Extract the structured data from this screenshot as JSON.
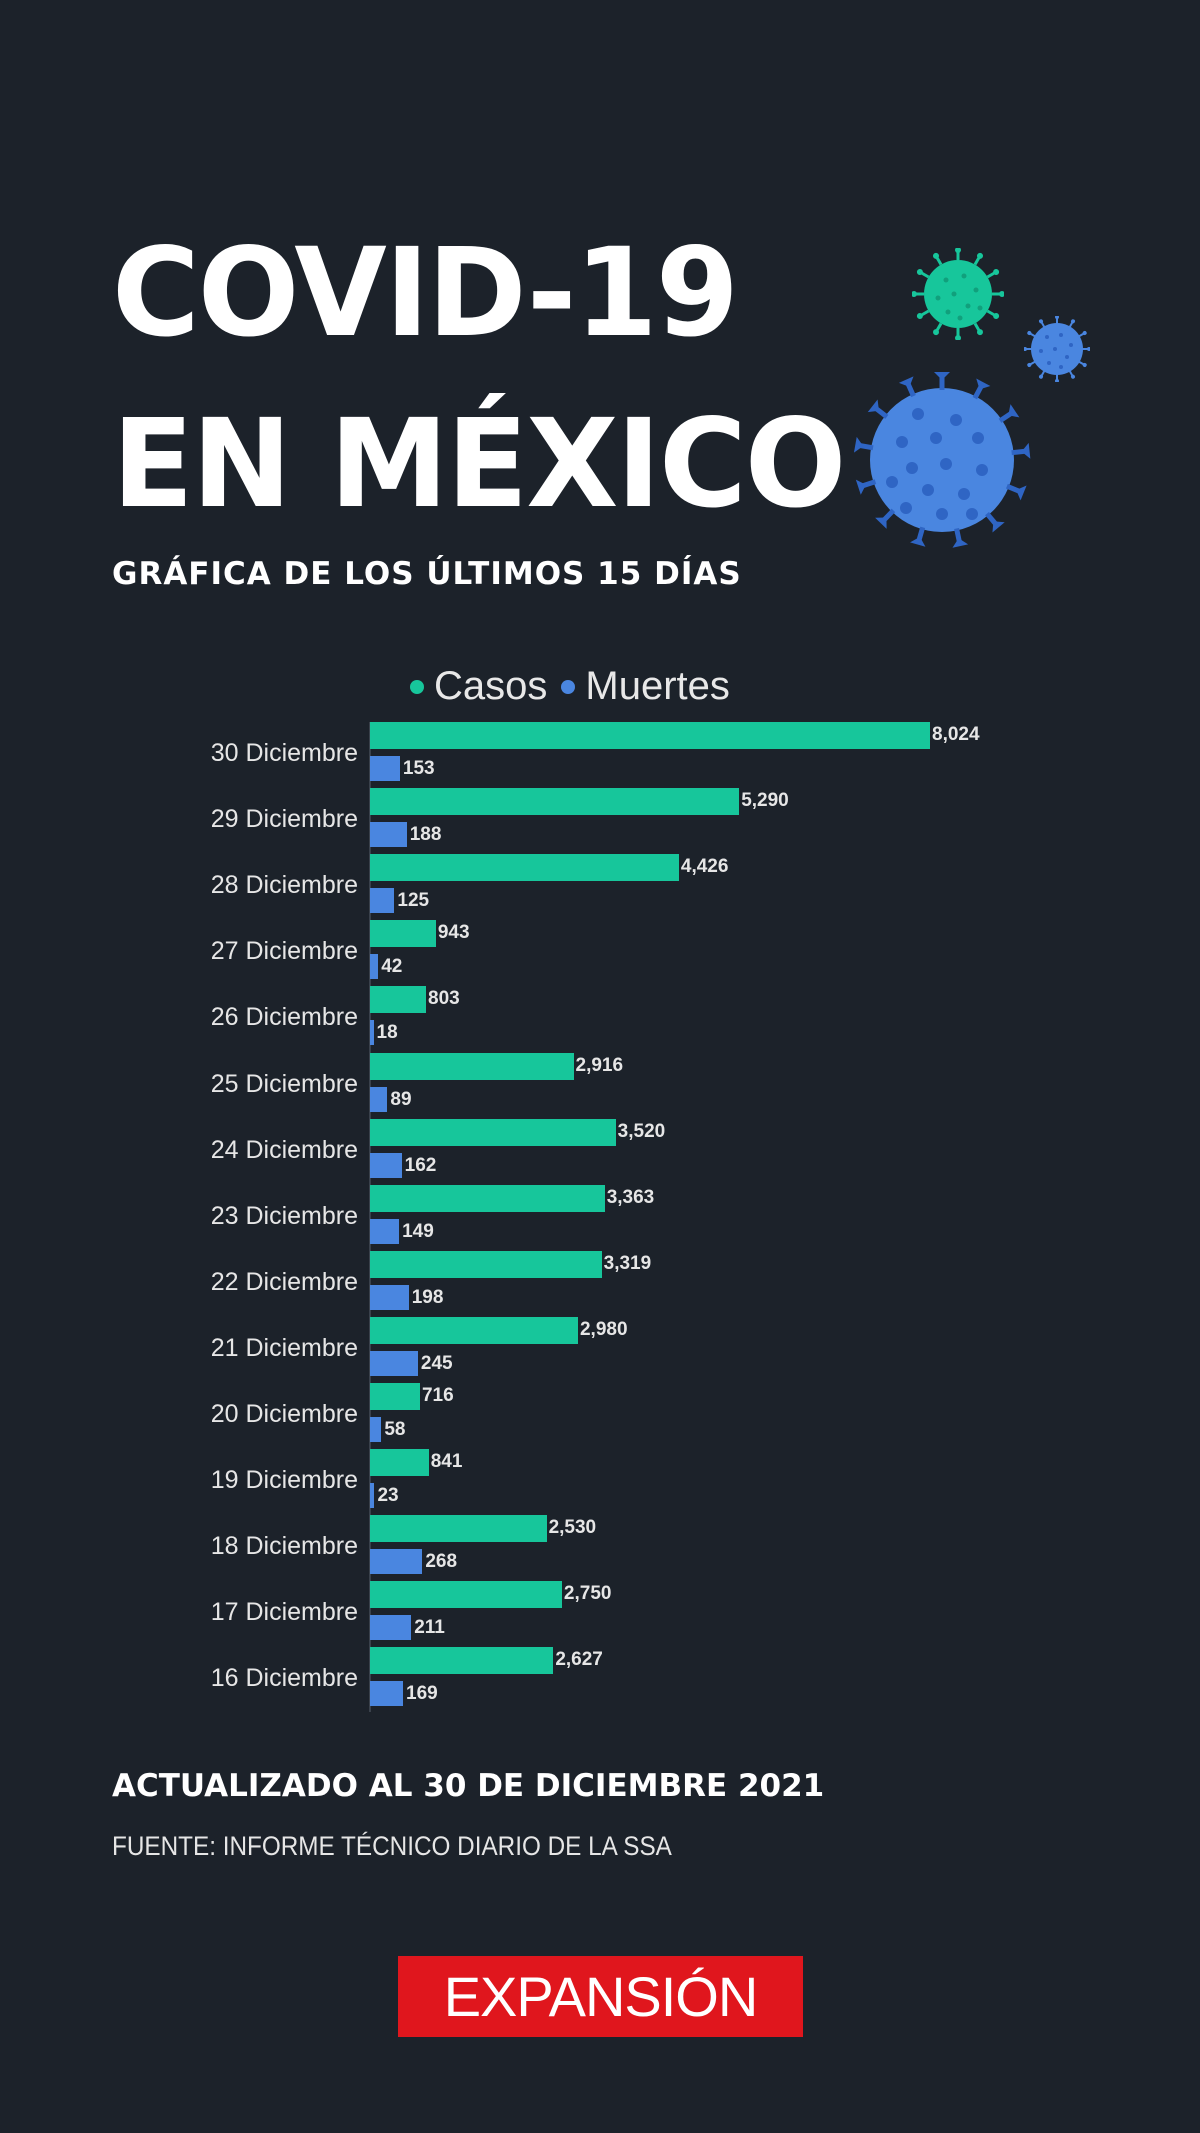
{
  "header": {
    "title_line1": "COVID-19",
    "title_line2": "EN MÉXICO",
    "subtitle": "GRÁFICA DE LOS ÚLTIMOS 15 DÍAS"
  },
  "legend": {
    "casos": "Casos",
    "muertes": "Muertes"
  },
  "colors": {
    "background": "#1c222a",
    "casos": "#17c69b",
    "muertes": "#4a86e0",
    "brand": "#e0161d"
  },
  "rows": [
    {
      "label": "30 Diciembre",
      "casos": "8,024",
      "muertes": "153"
    },
    {
      "label": "29 Diciembre",
      "casos": "5,290",
      "muertes": "188"
    },
    {
      "label": "28 Diciembre",
      "casos": "4,426",
      "muertes": "125"
    },
    {
      "label": "27 Diciembre",
      "casos": "943",
      "muertes": "42"
    },
    {
      "label": "26 Diciembre",
      "casos": "803",
      "muertes": "18"
    },
    {
      "label": "25 Diciembre",
      "casos": "2,916",
      "muertes": "89"
    },
    {
      "label": "24 Diciembre",
      "casos": "3,520",
      "muertes": "162"
    },
    {
      "label": "23 Diciembre",
      "casos": "3,363",
      "muertes": "149"
    },
    {
      "label": "22 Diciembre",
      "casos": "3,319",
      "muertes": "198"
    },
    {
      "label": "21 Diciembre",
      "casos": "2,980",
      "muertes": "245"
    },
    {
      "label": "20 Diciembre",
      "casos": "716",
      "muertes": "58"
    },
    {
      "label": "19 Diciembre",
      "casos": "841",
      "muertes": "23"
    },
    {
      "label": "18 Diciembre",
      "casos": "2,530",
      "muertes": "268"
    },
    {
      "label": "17 Diciembre",
      "casos": "2,750",
      "muertes": "211"
    },
    {
      "label": "16 Diciembre",
      "casos": "2,627",
      "muertes": "169"
    }
  ],
  "footer": {
    "updated": "ACTUALIZADO AL 30 DE DICIEMBRE 2021",
    "source": "FUENTE: INFORME TÉCNICO DIARIO DE LA SSA",
    "logo": "EXPANSIÓN"
  },
  "chart_data": {
    "type": "bar",
    "orientation": "horizontal",
    "title": "COVID-19 EN MÉXICO — Gráfica de los últimos 15 días",
    "categories": [
      "30 Diciembre",
      "29 Diciembre",
      "28 Diciembre",
      "27 Diciembre",
      "26 Diciembre",
      "25 Diciembre",
      "24 Diciembre",
      "23 Diciembre",
      "22 Diciembre",
      "21 Diciembre",
      "20 Diciembre",
      "19 Diciembre",
      "18 Diciembre",
      "17 Diciembre",
      "16 Diciembre"
    ],
    "series": [
      {
        "name": "Casos",
        "color": "#17c69b",
        "values": [
          8024,
          5290,
          4426,
          943,
          803,
          2916,
          3520,
          3363,
          3319,
          2980,
          716,
          841,
          2530,
          2750,
          2627
        ]
      },
      {
        "name": "Muertes",
        "color": "#4a86e0",
        "values": [
          153,
          188,
          125,
          42,
          18,
          89,
          162,
          149,
          198,
          245,
          58,
          23,
          268,
          211,
          169
        ]
      }
    ],
    "xlabel": "",
    "ylabel": "",
    "xlim": [
      0,
      8024
    ],
    "grid": false,
    "legend_position": "top",
    "data_labels": true,
    "annotations": [
      "ACTUALIZADO AL 30 DE DICIEMBRE 2021",
      "FUENTE: INFORME TÉCNICO DIARIO DE LA SSA"
    ]
  }
}
